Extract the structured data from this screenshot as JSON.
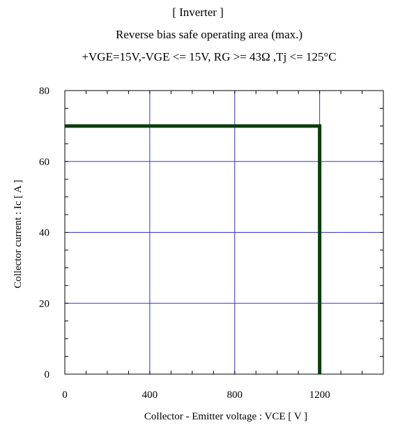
{
  "chart_data": {
    "type": "line",
    "title": "[ Inverter ]",
    "subtitle": "Reverse bias safe operating area (max.)",
    "conditions": "+VGE=15V,-VGE <= 15V, RG >= 43Ω ,Tj <= 125°C",
    "xlabel": "Collector - Emitter voltage  :  VCE  [ V ]",
    "ylabel": "Collector current  : Ic  [ A ]",
    "xlim": [
      0,
      1500
    ],
    "ylim": [
      0,
      80
    ],
    "x_ticks": [
      0,
      400,
      800,
      1200
    ],
    "y_ticks": [
      0,
      20,
      40,
      60,
      80
    ],
    "grid": true,
    "series": [
      {
        "x": [
          0,
          1200,
          1200
        ],
        "y": [
          70,
          70,
          0
        ],
        "color": "#0b3d0b"
      }
    ],
    "grid_color": "#3333cc"
  }
}
